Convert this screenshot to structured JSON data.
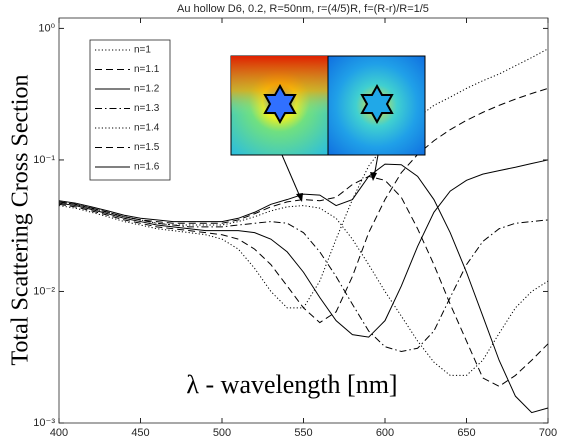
{
  "chart_data": {
    "type": "line",
    "title": "Au hollow D6, 0.2, R=50nm, r=(4/5)R, f=(R-r)/R=1/5",
    "x_label": "λ - wavelength [nm]",
    "y_label": "Total Scattering Cross Section",
    "log_y": true,
    "xlim": [
      400,
      700
    ],
    "xticks": [
      400,
      450,
      500,
      550,
      600,
      650,
      700
    ],
    "ylim": [
      0.001,
      1.2
    ],
    "yticks": [
      {
        "value": 0.001,
        "label": "10⁻³"
      },
      {
        "value": 0.01,
        "label": "10⁻²"
      },
      {
        "value": 0.1,
        "label": "10⁻¹"
      },
      {
        "value": 1,
        "label": "10⁰"
      }
    ],
    "legend": "upper left",
    "x": [
      400,
      410,
      420,
      430,
      440,
      450,
      460,
      470,
      480,
      490,
      500,
      510,
      520,
      530,
      540,
      550,
      560,
      570,
      580,
      590,
      600,
      610,
      620,
      630,
      640,
      650,
      660,
      670,
      680,
      690,
      700
    ],
    "series": [
      {
        "name": "n=1",
        "color": "#000000",
        "style": "dotted",
        "values": [
          0.045,
          0.043,
          0.04,
          0.037,
          0.034,
          0.032,
          0.03,
          0.029,
          0.028,
          0.027,
          0.025,
          0.021,
          0.015,
          0.01,
          0.0075,
          0.0075,
          0.012,
          0.025,
          0.05,
          0.09,
          0.13,
          0.17,
          0.21,
          0.26,
          0.3,
          0.35,
          0.4,
          0.45,
          0.52,
          0.6,
          0.7
        ]
      },
      {
        "name": "n=1.1",
        "color": "#000000",
        "style": "dashed",
        "values": [
          0.046,
          0.044,
          0.041,
          0.038,
          0.035,
          0.033,
          0.031,
          0.03,
          0.029,
          0.028,
          0.027,
          0.025,
          0.021,
          0.016,
          0.011,
          0.0075,
          0.0058,
          0.007,
          0.013,
          0.028,
          0.05,
          0.08,
          0.11,
          0.14,
          0.17,
          0.2,
          0.23,
          0.26,
          0.29,
          0.32,
          0.35
        ]
      },
      {
        "name": "n=1.2",
        "color": "#000000",
        "style": "solid",
        "values": [
          0.047,
          0.045,
          0.042,
          0.039,
          0.036,
          0.034,
          0.032,
          0.031,
          0.03,
          0.029,
          0.029,
          0.029,
          0.028,
          0.025,
          0.02,
          0.014,
          0.009,
          0.006,
          0.0047,
          0.0045,
          0.006,
          0.011,
          0.022,
          0.04,
          0.058,
          0.07,
          0.078,
          0.083,
          0.088,
          0.094,
          0.1
        ]
      },
      {
        "name": "n=1.3",
        "color": "#000000",
        "style": "dashdot",
        "values": [
          0.048,
          0.046,
          0.043,
          0.04,
          0.037,
          0.035,
          0.033,
          0.032,
          0.031,
          0.031,
          0.031,
          0.032,
          0.033,
          0.034,
          0.033,
          0.028,
          0.02,
          0.013,
          0.008,
          0.005,
          0.0038,
          0.0035,
          0.0037,
          0.005,
          0.009,
          0.016,
          0.024,
          0.03,
          0.033,
          0.034,
          0.035
        ]
      },
      {
        "name": "n=1.4",
        "color": "#000000",
        "style": "dotted",
        "values": [
          0.048,
          0.046,
          0.043,
          0.04,
          0.037,
          0.035,
          0.033,
          0.032,
          0.032,
          0.032,
          0.032,
          0.034,
          0.037,
          0.041,
          0.044,
          0.045,
          0.043,
          0.036,
          0.025,
          0.016,
          0.01,
          0.0065,
          0.0042,
          0.0029,
          0.0023,
          0.0023,
          0.003,
          0.0048,
          0.0075,
          0.01,
          0.012
        ]
      },
      {
        "name": "n=1.5",
        "color": "#000000",
        "style": "dashed",
        "values": [
          0.048,
          0.046,
          0.043,
          0.04,
          0.037,
          0.035,
          0.034,
          0.033,
          0.033,
          0.033,
          0.033,
          0.035,
          0.039,
          0.044,
          0.048,
          0.05,
          0.049,
          0.052,
          0.065,
          0.075,
          0.07,
          0.052,
          0.03,
          0.016,
          0.008,
          0.0042,
          0.0022,
          0.0019,
          0.0023,
          0.003,
          0.004
        ]
      },
      {
        "name": "n=1.6",
        "color": "#000000",
        "style": "solid",
        "values": [
          0.049,
          0.047,
          0.044,
          0.041,
          0.038,
          0.036,
          0.035,
          0.034,
          0.034,
          0.034,
          0.034,
          0.036,
          0.04,
          0.046,
          0.05,
          0.055,
          0.054,
          0.045,
          0.05,
          0.075,
          0.093,
          0.092,
          0.075,
          0.05,
          0.028,
          0.014,
          0.0065,
          0.003,
          0.0016,
          0.0012,
          0.0013
        ]
      }
    ]
  }
}
